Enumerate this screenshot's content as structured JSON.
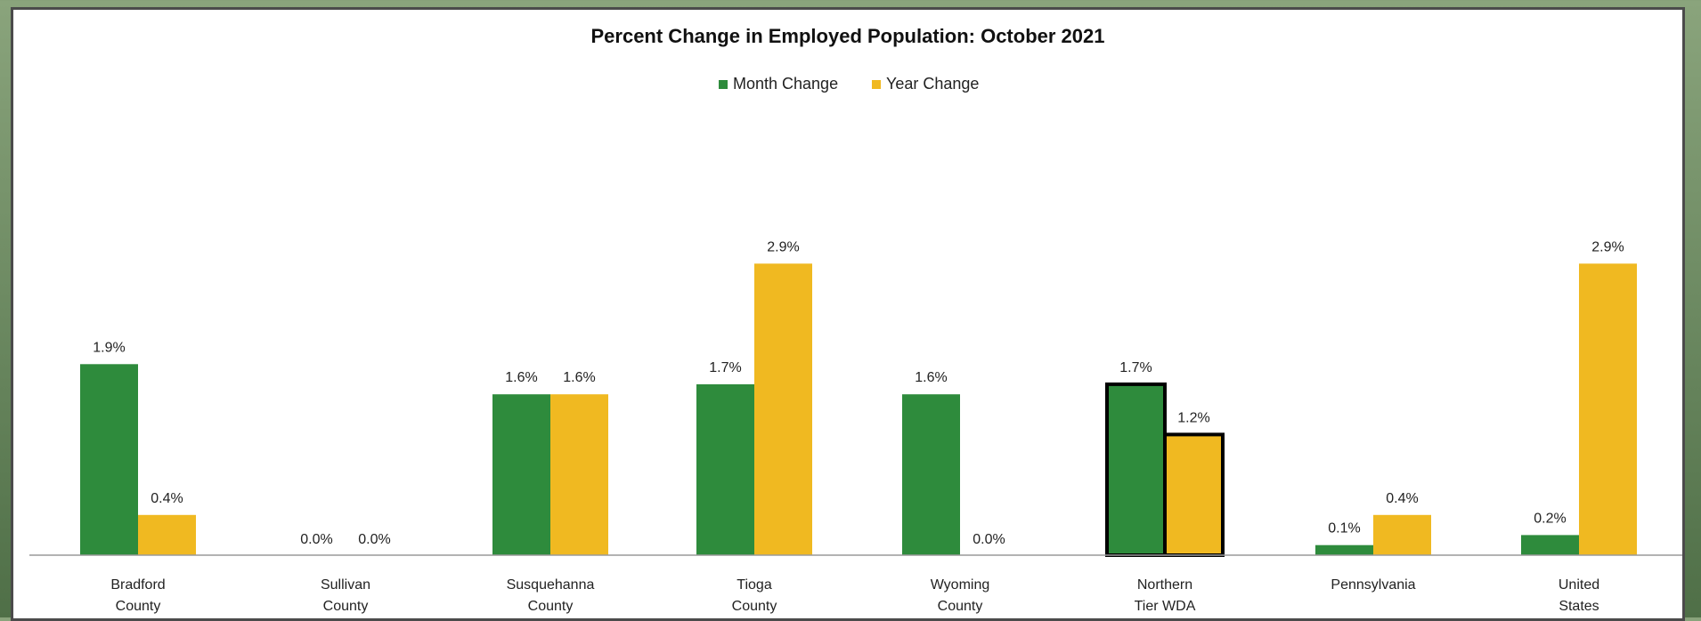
{
  "chart_data": {
    "type": "bar",
    "title": "Percent Change in Employed Population: October 2021",
    "categories": [
      [
        "Bradford",
        "County"
      ],
      [
        "Sullivan",
        "County"
      ],
      [
        "Susquehanna",
        "County"
      ],
      [
        "Tioga",
        "County"
      ],
      [
        "Wyoming",
        "County"
      ],
      [
        "Northern",
        "Tier WDA"
      ],
      [
        "Pennsylvania"
      ],
      [
        "United",
        "States"
      ]
    ],
    "series": [
      {
        "name": "Month Change",
        "color": "#2e8b3c",
        "values": [
          1.9,
          0.0,
          1.6,
          1.7,
          1.6,
          1.7,
          0.1,
          0.2
        ],
        "labels": [
          "1.9%",
          "0.0%",
          "1.6%",
          "1.7%",
          "1.6%",
          "1.7%",
          "0.1%",
          "0.2%"
        ]
      },
      {
        "name": "Year Change",
        "color": "#f0b921",
        "values": [
          0.4,
          0.0,
          1.6,
          2.9,
          0.0,
          1.2,
          0.4,
          2.9
        ],
        "labels": [
          "0.4%",
          "0.0%",
          "1.6%",
          "2.9%",
          "0.0%",
          "1.2%",
          "0.4%",
          "2.9%"
        ]
      }
    ],
    "highlighted_category": [
      "Northern",
      "Tier WDA"
    ],
    "xlabel": "",
    "ylabel": "",
    "ylim": [
      0,
      3.0
    ],
    "grid": false,
    "legend_position": "top-center"
  }
}
